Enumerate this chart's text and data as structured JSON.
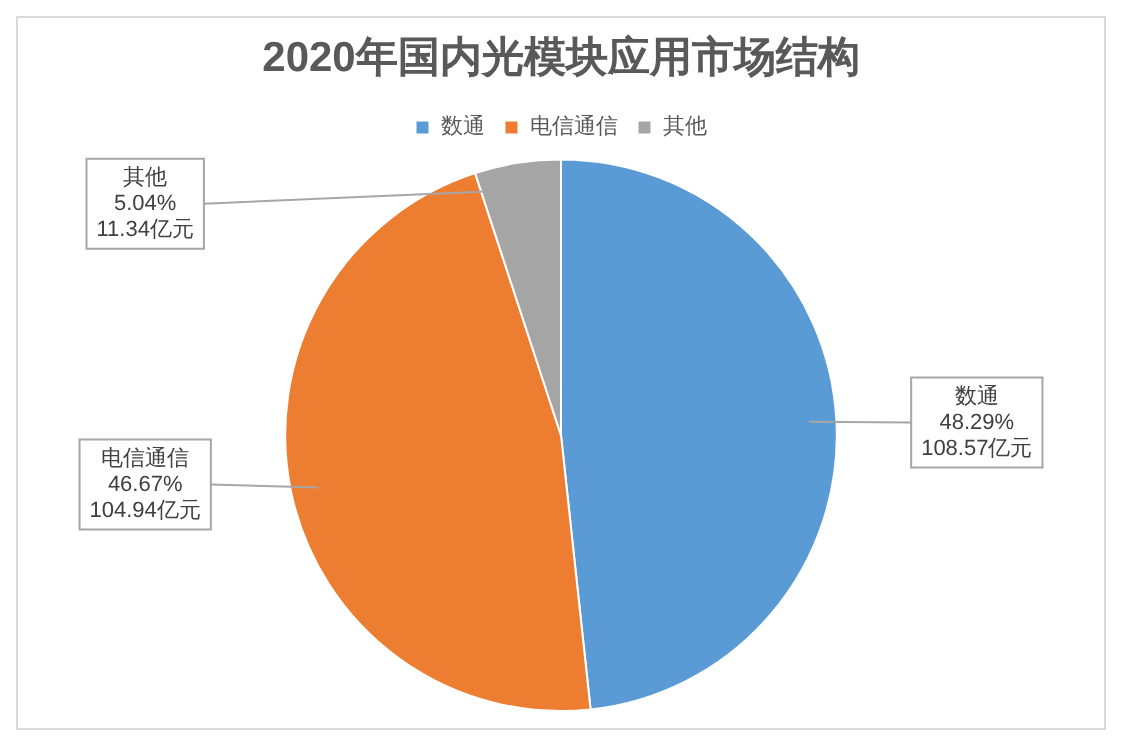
{
  "chart_data": {
    "type": "pie",
    "title": "2020年国内光模块应用市场结构",
    "categories": [
      "数通",
      "电信通信",
      "其他"
    ],
    "values": [
      48.29,
      46.67,
      5.04
    ],
    "value_labels": [
      "48.29%\n108.57亿元",
      "46.67%\n104.94亿元",
      "5.04%\n11.34亿元"
    ],
    "colors": [
      "#5b9bd5",
      "#ed7d31",
      "#a5a5a5"
    ],
    "legend": "top"
  }
}
